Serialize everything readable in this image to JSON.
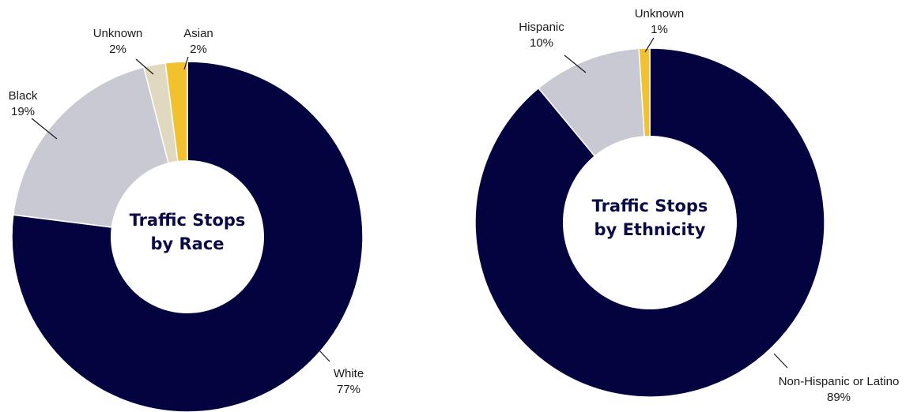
{
  "chart_data": [
    {
      "type": "pie",
      "title": "Traffic Stops by Race",
      "title_lines": [
        "Traffic Stops",
        "by Race"
      ],
      "slices": [
        {
          "label": "White",
          "value": 77,
          "value_text": "77%",
          "color": "#03033f"
        },
        {
          "label": "Black",
          "value": 19,
          "value_text": "19%",
          "color": "#c8c9d3"
        },
        {
          "label": "Unknown",
          "value": 2,
          "value_text": "2%",
          "color": "#e0d8bf"
        },
        {
          "label": "Asian",
          "value": 2,
          "value_text": "2%",
          "color": "#f2c12e"
        }
      ]
    },
    {
      "type": "pie",
      "title": "Traffic Stops by Ethnicity",
      "title_lines": [
        "Traffic Stops",
        "by Ethnicity"
      ],
      "slices": [
        {
          "label": "Non-Hispanic or Latino",
          "value": 89,
          "value_text": "89%",
          "color": "#03033f"
        },
        {
          "label": "Hispanic",
          "value": 10,
          "value_text": "10%",
          "color": "#c8c9d3"
        },
        {
          "label": "Unknown",
          "value": 1,
          "value_text": "1%",
          "color": "#f2c12e"
        }
      ]
    }
  ]
}
